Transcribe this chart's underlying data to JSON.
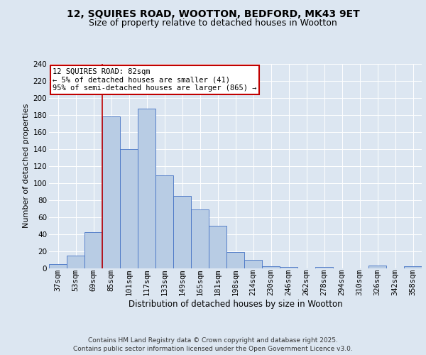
{
  "title1": "12, SQUIRES ROAD, WOOTTON, BEDFORD, MK43 9ET",
  "title2": "Size of property relative to detached houses in Wootton",
  "xlabel": "Distribution of detached houses by size in Wootton",
  "ylabel": "Number of detached properties",
  "categories": [
    "37sqm",
    "53sqm",
    "69sqm",
    "85sqm",
    "101sqm",
    "117sqm",
    "133sqm",
    "149sqm",
    "165sqm",
    "181sqm",
    "198sqm",
    "214sqm",
    "230sqm",
    "246sqm",
    "262sqm",
    "278sqm",
    "294sqm",
    "310sqm",
    "326sqm",
    "342sqm",
    "358sqm"
  ],
  "values": [
    5,
    15,
    42,
    178,
    140,
    187,
    109,
    85,
    69,
    50,
    19,
    10,
    2,
    1,
    0,
    1,
    0,
    0,
    3,
    0,
    2
  ],
  "bar_color": "#b8cce4",
  "bar_edge_color": "#4472c4",
  "vline_x_index": 3,
  "vline_color": "#c00000",
  "annotation_line1": "12 SQUIRES ROAD: 82sqm",
  "annotation_line2": "← 5% of detached houses are smaller (41)",
  "annotation_line3": "95% of semi-detached houses are larger (865) →",
  "annotation_box_color": "#ffffff",
  "annotation_box_edge": "#c00000",
  "bg_color": "#dce6f1",
  "plot_bg_color": "#dce6f1",
  "footer": "Contains HM Land Registry data © Crown copyright and database right 2025.\nContains public sector information licensed under the Open Government Licence v3.0.",
  "ylim": [
    0,
    240
  ],
  "yticks": [
    0,
    20,
    40,
    60,
    80,
    100,
    120,
    140,
    160,
    180,
    200,
    220,
    240
  ],
  "title1_fontsize": 10,
  "title2_fontsize": 9,
  "xlabel_fontsize": 8.5,
  "ylabel_fontsize": 8,
  "tick_fontsize": 7.5,
  "annot_fontsize": 7.5,
  "footer_fontsize": 6.5
}
